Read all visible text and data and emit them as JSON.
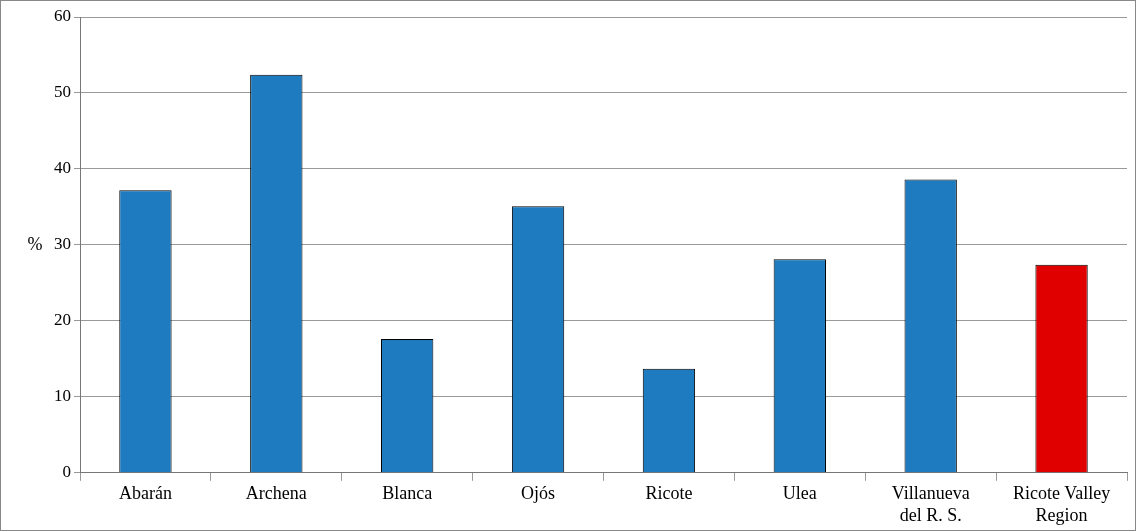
{
  "chart_data": {
    "type": "bar",
    "ylabel": "%",
    "categories": [
      "Abarán",
      "Archena",
      "Blanca",
      "Ojós",
      "Ricote",
      "Ulea",
      "Villanueva del R. S.",
      "Ricote Valley Region"
    ],
    "values": [
      37.2,
      52.4,
      17.6,
      35.1,
      13.7,
      28.1,
      38.6,
      27.4
    ],
    "colors": [
      "#1f7bbf",
      "#1f7bbf",
      "#1f7bbf",
      "#1f7bbf",
      "#1f7bbf",
      "#1f7bbf",
      "#1f7bbf",
      "#e00000"
    ],
    "ylim": [
      0,
      60
    ],
    "yticks": [
      0,
      10,
      20,
      30,
      40,
      50,
      60
    ],
    "grid": "y",
    "legend": false
  }
}
